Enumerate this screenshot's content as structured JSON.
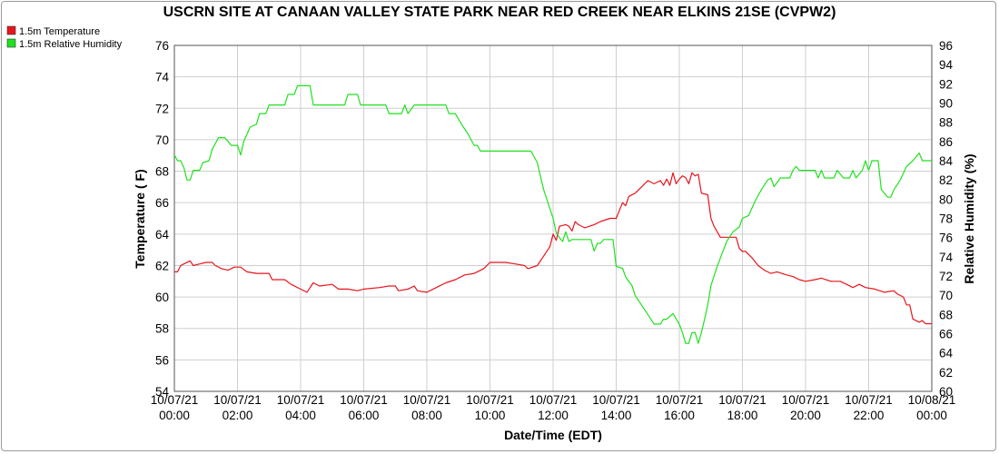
{
  "chart_data": {
    "type": "line",
    "title": "USCRN SITE AT CANAAN VALLEY STATE PARK NEAR RED CREEK NEAR ELKINS 21SE (CVPW2)",
    "xlabel": "Date/Time (EDT)",
    "ylabel_left": "Temperature ( F)",
    "ylabel_right": "Relative Humidity (%)",
    "x_range_hours": [
      0,
      24
    ],
    "ylim_left": [
      54,
      76
    ],
    "ylim_right": [
      60,
      96
    ],
    "grid": true,
    "legend_position": "top-left",
    "x_ticks": [
      {
        "hour": 0,
        "date": "10/07/21",
        "time": "00:00"
      },
      {
        "hour": 2,
        "date": "10/07/21",
        "time": "02:00"
      },
      {
        "hour": 4,
        "date": "10/07/21",
        "time": "04:00"
      },
      {
        "hour": 6,
        "date": "10/07/21",
        "time": "06:00"
      },
      {
        "hour": 8,
        "date": "10/07/21",
        "time": "08:00"
      },
      {
        "hour": 10,
        "date": "10/07/21",
        "time": "10:00"
      },
      {
        "hour": 12,
        "date": "10/07/21",
        "time": "12:00"
      },
      {
        "hour": 14,
        "date": "10/07/21",
        "time": "14:00"
      },
      {
        "hour": 16,
        "date": "10/07/21",
        "time": "16:00"
      },
      {
        "hour": 18,
        "date": "10/07/21",
        "time": "18:00"
      },
      {
        "hour": 20,
        "date": "10/07/21",
        "time": "20:00"
      },
      {
        "hour": 22,
        "date": "10/07/21",
        "time": "22:00"
      },
      {
        "hour": 24,
        "date": "10/08/21",
        "time": "00:00"
      }
    ],
    "y_ticks_left": [
      54,
      56,
      58,
      60,
      62,
      64,
      66,
      68,
      70,
      72,
      74,
      76
    ],
    "y_ticks_right": [
      60,
      62,
      64,
      66,
      68,
      70,
      72,
      74,
      76,
      78,
      80,
      82,
      84,
      86,
      88,
      90,
      92,
      94,
      96
    ],
    "series": [
      {
        "name": "1.5m Temperature",
        "axis": "left",
        "color": "#e8141c",
        "points": [
          [
            0.0,
            61.6
          ],
          [
            0.1,
            61.6
          ],
          [
            0.2,
            62.0
          ],
          [
            0.3,
            62.1
          ],
          [
            0.5,
            62.3
          ],
          [
            0.6,
            62.0
          ],
          [
            0.8,
            62.1
          ],
          [
            1.0,
            62.2
          ],
          [
            1.2,
            62.2
          ],
          [
            1.3,
            62.0
          ],
          [
            1.5,
            61.8
          ],
          [
            1.7,
            61.7
          ],
          [
            1.9,
            61.9
          ],
          [
            2.1,
            61.9
          ],
          [
            2.3,
            61.6
          ],
          [
            2.6,
            61.5
          ],
          [
            3.0,
            61.5
          ],
          [
            3.1,
            61.1
          ],
          [
            3.5,
            61.1
          ],
          [
            3.7,
            60.8
          ],
          [
            4.0,
            60.5
          ],
          [
            4.2,
            60.3
          ],
          [
            4.4,
            60.9
          ],
          [
            4.6,
            60.7
          ],
          [
            5.0,
            60.8
          ],
          [
            5.2,
            60.5
          ],
          [
            5.5,
            60.5
          ],
          [
            5.8,
            60.4
          ],
          [
            6.0,
            60.5
          ],
          [
            6.5,
            60.6
          ],
          [
            6.8,
            60.7
          ],
          [
            7.0,
            60.7
          ],
          [
            7.1,
            60.4
          ],
          [
            7.4,
            60.5
          ],
          [
            7.6,
            60.7
          ],
          [
            7.7,
            60.4
          ],
          [
            8.0,
            60.3
          ],
          [
            8.3,
            60.6
          ],
          [
            8.6,
            60.9
          ],
          [
            8.9,
            61.1
          ],
          [
            9.2,
            61.4
          ],
          [
            9.5,
            61.5
          ],
          [
            9.8,
            61.8
          ],
          [
            10.0,
            62.2
          ],
          [
            10.5,
            62.2
          ],
          [
            10.8,
            62.1
          ],
          [
            11.1,
            62.0
          ],
          [
            11.2,
            61.8
          ],
          [
            11.5,
            62.0
          ],
          [
            11.7,
            62.6
          ],
          [
            11.9,
            63.2
          ],
          [
            12.0,
            64.0
          ],
          [
            12.1,
            63.6
          ],
          [
            12.2,
            64.5
          ],
          [
            12.4,
            64.6
          ],
          [
            12.5,
            64.5
          ],
          [
            12.6,
            64.2
          ],
          [
            12.7,
            64.8
          ],
          [
            12.8,
            64.6
          ],
          [
            13.0,
            64.4
          ],
          [
            13.3,
            64.6
          ],
          [
            13.5,
            64.8
          ],
          [
            13.8,
            65.0
          ],
          [
            14.0,
            65.0
          ],
          [
            14.1,
            65.5
          ],
          [
            14.2,
            66.0
          ],
          [
            14.3,
            65.8
          ],
          [
            14.4,
            66.4
          ],
          [
            14.6,
            66.6
          ],
          [
            14.8,
            67.0
          ],
          [
            15.0,
            67.4
          ],
          [
            15.2,
            67.2
          ],
          [
            15.4,
            67.4
          ],
          [
            15.5,
            67.1
          ],
          [
            15.6,
            67.5
          ],
          [
            15.7,
            67.1
          ],
          [
            15.8,
            67.9
          ],
          [
            15.9,
            67.2
          ],
          [
            16.0,
            67.5
          ],
          [
            16.1,
            67.7
          ],
          [
            16.2,
            67.6
          ],
          [
            16.3,
            67.2
          ],
          [
            16.4,
            67.9
          ],
          [
            16.5,
            67.7
          ],
          [
            16.6,
            67.8
          ],
          [
            16.7,
            66.6
          ],
          [
            16.9,
            66.5
          ],
          [
            17.0,
            65.0
          ],
          [
            17.1,
            64.5
          ],
          [
            17.3,
            63.8
          ],
          [
            17.8,
            63.8
          ],
          [
            17.9,
            63.1
          ],
          [
            18.0,
            62.9
          ],
          [
            18.1,
            62.9
          ],
          [
            18.3,
            62.5
          ],
          [
            18.5,
            62.0
          ],
          [
            18.7,
            61.7
          ],
          [
            18.9,
            61.5
          ],
          [
            19.1,
            61.6
          ],
          [
            19.4,
            61.4
          ],
          [
            19.6,
            61.3
          ],
          [
            19.8,
            61.1
          ],
          [
            20.0,
            61.0
          ],
          [
            20.3,
            61.1
          ],
          [
            20.5,
            61.2
          ],
          [
            20.8,
            61.0
          ],
          [
            21.1,
            61.0
          ],
          [
            21.3,
            60.8
          ],
          [
            21.5,
            60.6
          ],
          [
            21.7,
            60.8
          ],
          [
            21.9,
            60.6
          ],
          [
            22.2,
            60.5
          ],
          [
            22.5,
            60.3
          ],
          [
            22.8,
            60.4
          ],
          [
            22.9,
            60.2
          ],
          [
            23.1,
            60.0
          ],
          [
            23.2,
            59.5
          ],
          [
            23.3,
            59.5
          ],
          [
            23.4,
            58.6
          ],
          [
            23.6,
            58.4
          ],
          [
            23.7,
            58.5
          ],
          [
            23.8,
            58.3
          ],
          [
            24.0,
            58.3
          ]
        ]
      },
      {
        "name": "1.5m Relative Humidity",
        "axis": "right",
        "color": "#1ee21e",
        "points": [
          [
            0.0,
            84.6
          ],
          [
            0.1,
            84.0
          ],
          [
            0.2,
            84.0
          ],
          [
            0.3,
            83.3
          ],
          [
            0.4,
            82.0
          ],
          [
            0.5,
            82.0
          ],
          [
            0.6,
            83.0
          ],
          [
            0.8,
            83.0
          ],
          [
            0.9,
            83.8
          ],
          [
            1.1,
            84.0
          ],
          [
            1.2,
            85.2
          ],
          [
            1.4,
            86.4
          ],
          [
            1.6,
            86.4
          ],
          [
            1.8,
            85.6
          ],
          [
            2.0,
            85.6
          ],
          [
            2.1,
            84.6
          ],
          [
            2.2,
            86.0
          ],
          [
            2.4,
            87.5
          ],
          [
            2.6,
            87.8
          ],
          [
            2.7,
            88.9
          ],
          [
            2.9,
            88.9
          ],
          [
            3.0,
            89.8
          ],
          [
            3.5,
            89.8
          ],
          [
            3.6,
            90.9
          ],
          [
            3.8,
            90.9
          ],
          [
            3.9,
            91.8
          ],
          [
            4.3,
            91.8
          ],
          [
            4.4,
            89.8
          ],
          [
            5.4,
            89.8
          ],
          [
            5.5,
            90.9
          ],
          [
            5.8,
            90.9
          ],
          [
            5.9,
            89.8
          ],
          [
            6.7,
            89.8
          ],
          [
            6.8,
            88.9
          ],
          [
            7.2,
            88.9
          ],
          [
            7.3,
            89.8
          ],
          [
            7.4,
            88.9
          ],
          [
            7.6,
            89.8
          ],
          [
            8.6,
            89.8
          ],
          [
            8.7,
            88.9
          ],
          [
            8.9,
            88.9
          ],
          [
            9.1,
            87.8
          ],
          [
            9.3,
            86.8
          ],
          [
            9.5,
            85.6
          ],
          [
            9.6,
            85.6
          ],
          [
            9.7,
            85.0
          ],
          [
            10.5,
            85.0
          ],
          [
            11.2,
            85.0
          ],
          [
            11.3,
            85.0
          ],
          [
            11.5,
            83.8
          ],
          [
            11.7,
            81.0
          ],
          [
            12.0,
            78.0
          ],
          [
            12.1,
            76.5
          ],
          [
            12.2,
            76.0
          ],
          [
            12.3,
            75.6
          ],
          [
            12.4,
            76.6
          ],
          [
            12.5,
            75.6
          ],
          [
            12.6,
            75.8
          ],
          [
            13.0,
            75.8
          ],
          [
            13.2,
            75.8
          ],
          [
            13.3,
            74.6
          ],
          [
            13.4,
            75.4
          ],
          [
            13.5,
            75.4
          ],
          [
            13.6,
            75.8
          ],
          [
            13.9,
            75.8
          ],
          [
            14.0,
            73.0
          ],
          [
            14.2,
            72.8
          ],
          [
            14.3,
            71.9
          ],
          [
            14.5,
            71.0
          ],
          [
            14.6,
            70.0
          ],
          [
            14.8,
            69.0
          ],
          [
            15.0,
            68.0
          ],
          [
            15.2,
            67.0
          ],
          [
            15.4,
            67.0
          ],
          [
            15.5,
            67.5
          ],
          [
            15.6,
            67.5
          ],
          [
            15.8,
            68.1
          ],
          [
            16.0,
            67.0
          ],
          [
            16.1,
            66.1
          ],
          [
            16.2,
            65.0
          ],
          [
            16.3,
            65.0
          ],
          [
            16.4,
            66.1
          ],
          [
            16.5,
            66.1
          ],
          [
            16.6,
            65.0
          ],
          [
            16.7,
            66.1
          ],
          [
            16.8,
            67.5
          ],
          [
            16.9,
            69.0
          ],
          [
            17.0,
            71.0
          ],
          [
            17.2,
            73.0
          ],
          [
            17.5,
            75.6
          ],
          [
            17.7,
            76.6
          ],
          [
            17.9,
            77.1
          ],
          [
            18.0,
            78.0
          ],
          [
            18.2,
            78.3
          ],
          [
            18.4,
            79.8
          ],
          [
            18.6,
            81.0
          ],
          [
            18.8,
            82.0
          ],
          [
            18.9,
            82.2
          ],
          [
            19.0,
            81.3
          ],
          [
            19.2,
            82.2
          ],
          [
            19.5,
            82.2
          ],
          [
            19.6,
            83.0
          ],
          [
            19.7,
            83.4
          ],
          [
            19.8,
            83.0
          ],
          [
            20.0,
            83.0
          ],
          [
            20.1,
            83.0
          ],
          [
            20.3,
            83.0
          ],
          [
            20.4,
            82.2
          ],
          [
            20.5,
            83.0
          ],
          [
            20.6,
            82.2
          ],
          [
            20.9,
            82.2
          ],
          [
            21.0,
            83.0
          ],
          [
            21.2,
            82.2
          ],
          [
            21.4,
            82.2
          ],
          [
            21.5,
            83.0
          ],
          [
            21.6,
            82.2
          ],
          [
            21.8,
            83.0
          ],
          [
            21.9,
            84.0
          ],
          [
            22.0,
            83.0
          ],
          [
            22.1,
            84.0
          ],
          [
            22.3,
            84.0
          ],
          [
            22.4,
            81.0
          ],
          [
            22.6,
            80.2
          ],
          [
            22.7,
            80.2
          ],
          [
            22.8,
            81.0
          ],
          [
            23.0,
            82.0
          ],
          [
            23.2,
            83.4
          ],
          [
            23.4,
            84.0
          ],
          [
            23.6,
            84.8
          ],
          [
            23.7,
            84.0
          ],
          [
            24.0,
            84.0
          ]
        ]
      }
    ]
  }
}
